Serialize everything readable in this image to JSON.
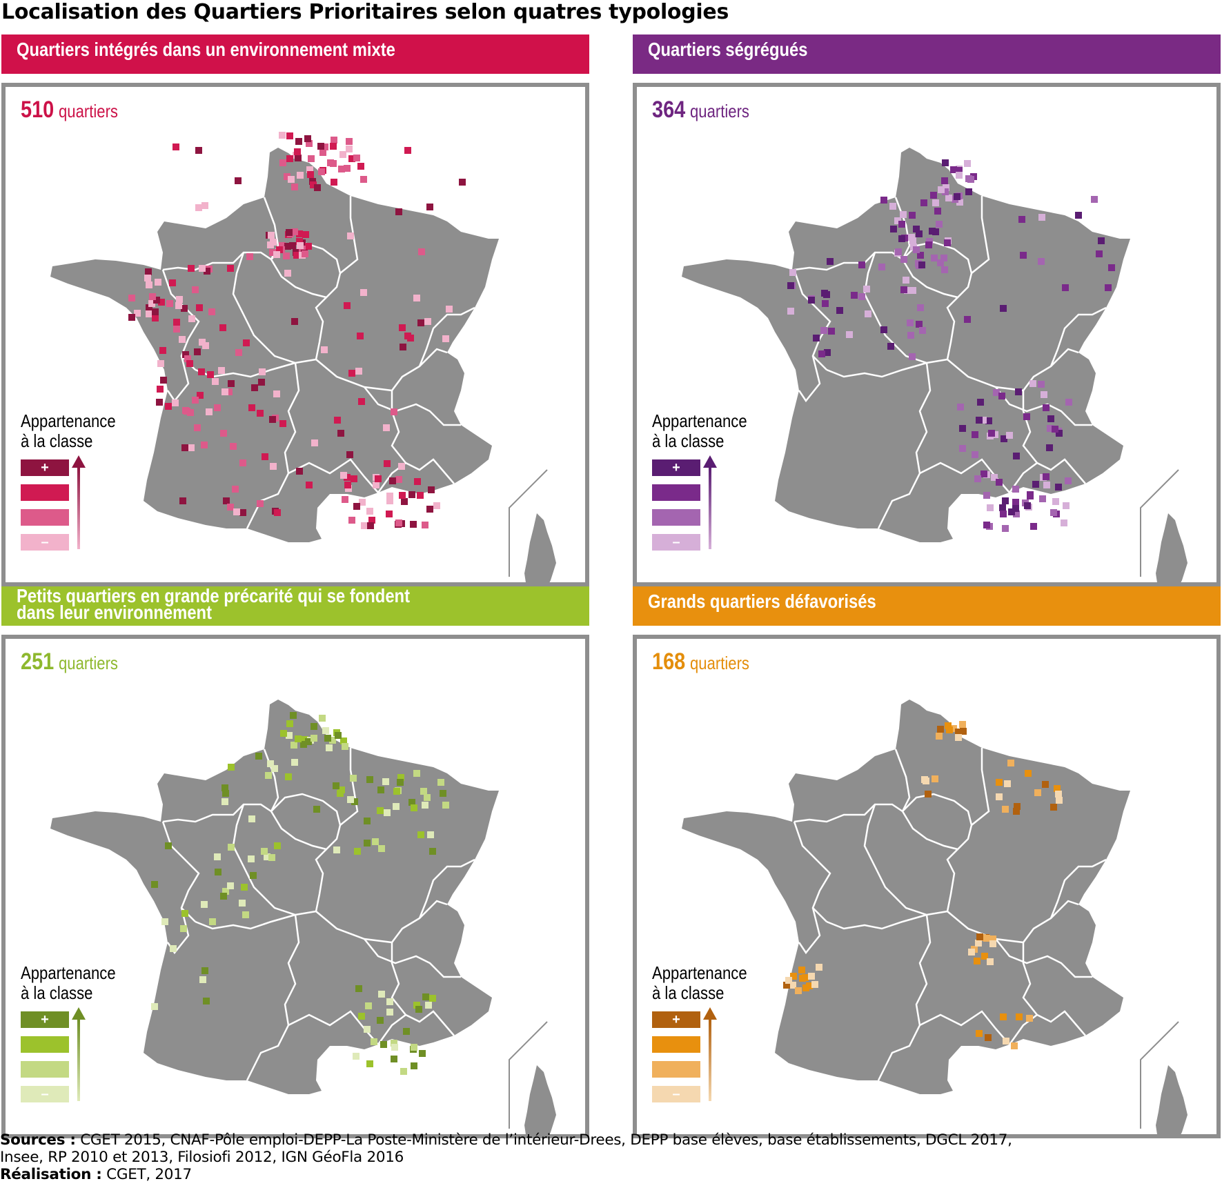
{
  "title": "Localisation des Quartiers Prioritaires selon quatres typologies",
  "legend": {
    "title": "Appartenance\nà la classe",
    "plus": "+",
    "minus": "–"
  },
  "panels": [
    {
      "banner": "Quartiers intégrés dans un environnement mixte",
      "count": "510",
      "count_label": "quartiers",
      "colors": {
        "accent": "#cc1248",
        "banner": "#d0114a",
        "shades": [
          "#8e1440",
          "#d01a52",
          "#dd5a8a",
          "#f2b2cb"
        ]
      }
    },
    {
      "banner": "Quartiers ségrégués",
      "count": "364",
      "count_label": "quartiers",
      "colors": {
        "accent": "#6e2580",
        "banner": "#7a2a84",
        "shades": [
          "#5a1d72",
          "#7a2a8a",
          "#a465b0",
          "#d6afd8"
        ]
      }
    },
    {
      "banner": "Petits quartiers en grande précarité qui se fondent\ndans leur environnement",
      "count": "251",
      "count_label": "quartiers",
      "colors": {
        "accent": "#8eb82e",
        "banner": "#9cc22c",
        "shades": [
          "#6f8f25",
          "#9cc22c",
          "#c3d983",
          "#dfeab9"
        ]
      }
    },
    {
      "banner": "Grands quartiers défavorisés",
      "count": "168",
      "count_label": "quartiers",
      "colors": {
        "accent": "#e48e0b",
        "banner": "#e8900e",
        "shades": [
          "#b1610f",
          "#e8900e",
          "#f0b05c",
          "#f5d8b0"
        ]
      }
    }
  ],
  "sources": {
    "label": "Sources :",
    "text": " CGET 2015, CNAF-Pôle emploi-DEPP-La Poste-Ministère de l’intérieur-Drees, DEPP base élèves, base établissements, DGCL 2017,",
    "line2": "Insee, RP 2010 et 2013, Filosiofi 2012, IGN GéoFla 2016",
    "realisation_label": "Réalisation :",
    "realisation": " CGET, 2017"
  }
}
